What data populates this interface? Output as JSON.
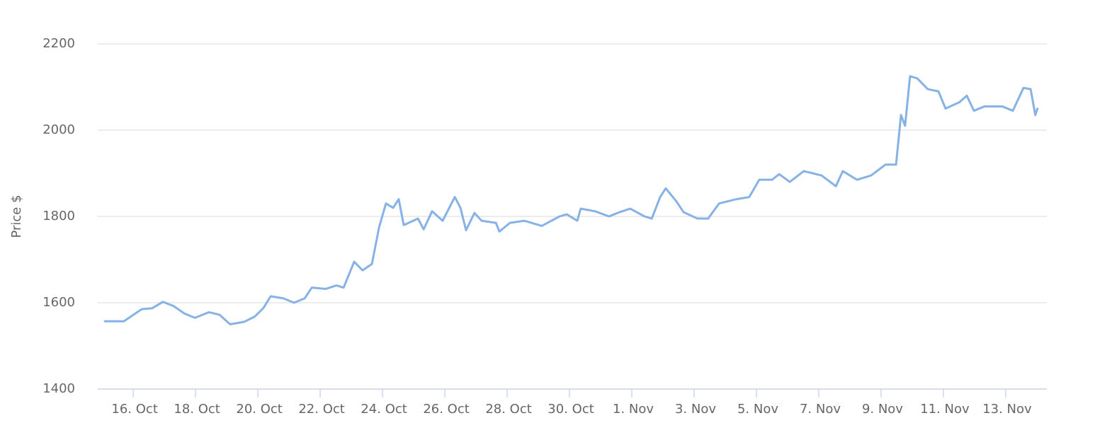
{
  "chart_data": {
    "type": "line",
    "y_label": "Price $",
    "color": "#86b2e6",
    "grid": true,
    "x": [
      15.09,
      15.7,
      16.27,
      16.6,
      16.95,
      17.3,
      17.64,
      17.98,
      18.43,
      18.77,
      19.11,
      19.57,
      19.9,
      20.18,
      20.41,
      20.82,
      21.16,
      21.5,
      21.73,
      22.18,
      22.52,
      22.75,
      23.09,
      23.36,
      23.66,
      23.89,
      24.11,
      24.34,
      24.52,
      24.68,
      25.14,
      25.32,
      25.59,
      25.93,
      26.32,
      26.5,
      26.68,
      26.95,
      27.18,
      27.64,
      27.75,
      28.09,
      28.55,
      29.11,
      29.68,
      29.91,
      30.25,
      30.36,
      30.82,
      31.27,
      31.61,
      31.95,
      32.41,
      32.64,
      32.91,
      33.09,
      33.43,
      33.66,
      34.11,
      34.45,
      34.8,
      35.36,
      35.77,
      36.09,
      36.5,
      36.73,
      37.07,
      37.52,
      38.09,
      38.55,
      38.77,
      39.23,
      39.68,
      40.14,
      40.48,
      40.64,
      40.77,
      40.93,
      41.16,
      41.5,
      41.84,
      42.07,
      42.52,
      42.75,
      42.98,
      43.32,
      43.89,
      44.23,
      44.57,
      44.8,
      44.95,
      45.02
    ],
    "values": [
      1557,
      1557,
      1585,
      1587,
      1602,
      1592,
      1575,
      1565,
      1578,
      1572,
      1550,
      1556,
      1568,
      1588,
      1615,
      1610,
      1600,
      1610,
      1635,
      1632,
      1640,
      1635,
      1695,
      1675,
      1690,
      1775,
      1830,
      1820,
      1840,
      1780,
      1795,
      1770,
      1812,
      1790,
      1845,
      1820,
      1768,
      1808,
      1790,
      1785,
      1765,
      1785,
      1790,
      1778,
      1800,
      1805,
      1790,
      1818,
      1812,
      1800,
      1810,
      1818,
      1800,
      1795,
      1845,
      1865,
      1835,
      1810,
      1795,
      1795,
      1830,
      1840,
      1845,
      1885,
      1885,
      1898,
      1880,
      1905,
      1895,
      1870,
      1905,
      1885,
      1895,
      1920,
      1920,
      2035,
      2010,
      2125,
      2120,
      2095,
      2090,
      2050,
      2065,
      2080,
      2045,
      2055,
      2055,
      2045,
      2098,
      2095,
      2035,
      2050
    ],
    "xlim": [
      14.86,
      45.32
    ],
    "xticks": [
      {
        "value": 16,
        "label": "16. Oct"
      },
      {
        "value": 18,
        "label": "18. Oct"
      },
      {
        "value": 20,
        "label": "20. Oct"
      },
      {
        "value": 22,
        "label": "22. Oct"
      },
      {
        "value": 24,
        "label": "24. Oct"
      },
      {
        "value": 26,
        "label": "26. Oct"
      },
      {
        "value": 28,
        "label": "28. Oct"
      },
      {
        "value": 30,
        "label": "30. Oct"
      },
      {
        "value": 32,
        "label": "1. Nov"
      },
      {
        "value": 34,
        "label": "3. Nov"
      },
      {
        "value": 36,
        "label": "5. Nov"
      },
      {
        "value": 38,
        "label": "7. Nov"
      },
      {
        "value": 40,
        "label": "9. Nov"
      },
      {
        "value": 42,
        "label": "11. Nov"
      },
      {
        "value": 44,
        "label": "13. Nov"
      }
    ],
    "ylim": [
      1400,
      2200
    ],
    "yticks": [
      1400,
      1600,
      1800,
      2000,
      2200
    ]
  }
}
